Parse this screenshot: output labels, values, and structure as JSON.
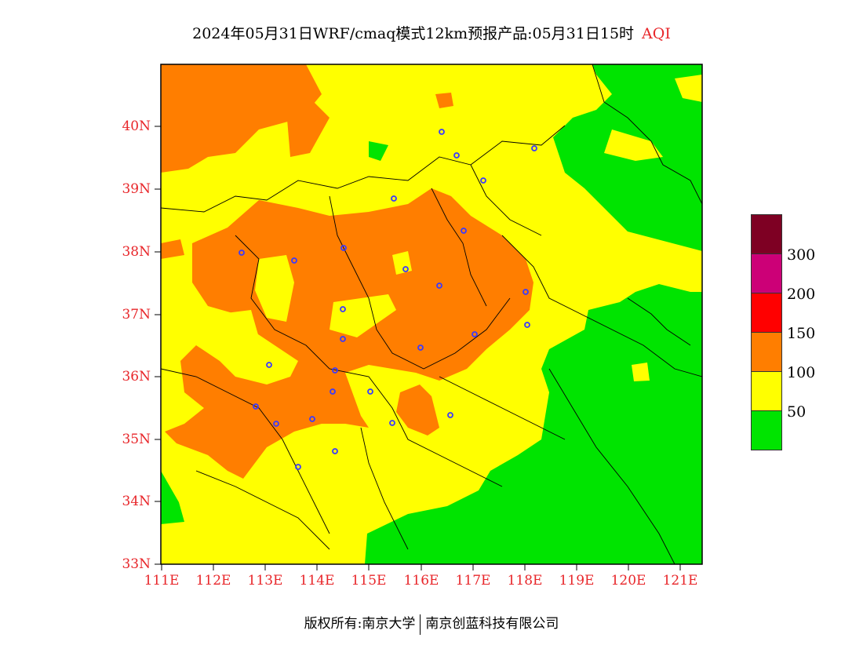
{
  "title": {
    "text": "2024年05月31日WRF/cmaq模式12km预报产品:05月31日15时",
    "highlight": "AQI"
  },
  "map": {
    "lat_labels": [
      "40N",
      "39N",
      "38N",
      "37N",
      "36N",
      "35N",
      "34N",
      "33N"
    ],
    "lon_labels": [
      "111E",
      "112E",
      "113E",
      "114E",
      "115E",
      "116E",
      "117E",
      "118E",
      "119E",
      "120E",
      "121E"
    ],
    "category_colors": {
      "good": "#00e400",
      "moderate": "#ffff00",
      "unhealthy_sensitive": "#ff7e00",
      "unhealthy": "#ff0000",
      "very_unhealthy": "#cc0077",
      "hazardous": "#7e0023"
    }
  },
  "legend": {
    "swatches": [
      "#7e0023",
      "#cc0077",
      "#ff0000",
      "#ff7e00",
      "#ffff00",
      "#00e400"
    ],
    "labels": [
      "300",
      "200",
      "150",
      "100",
      "50"
    ]
  },
  "footer": {
    "left": "版权所有:南京大学",
    "right": "南京创蓝科技有限公司"
  }
}
